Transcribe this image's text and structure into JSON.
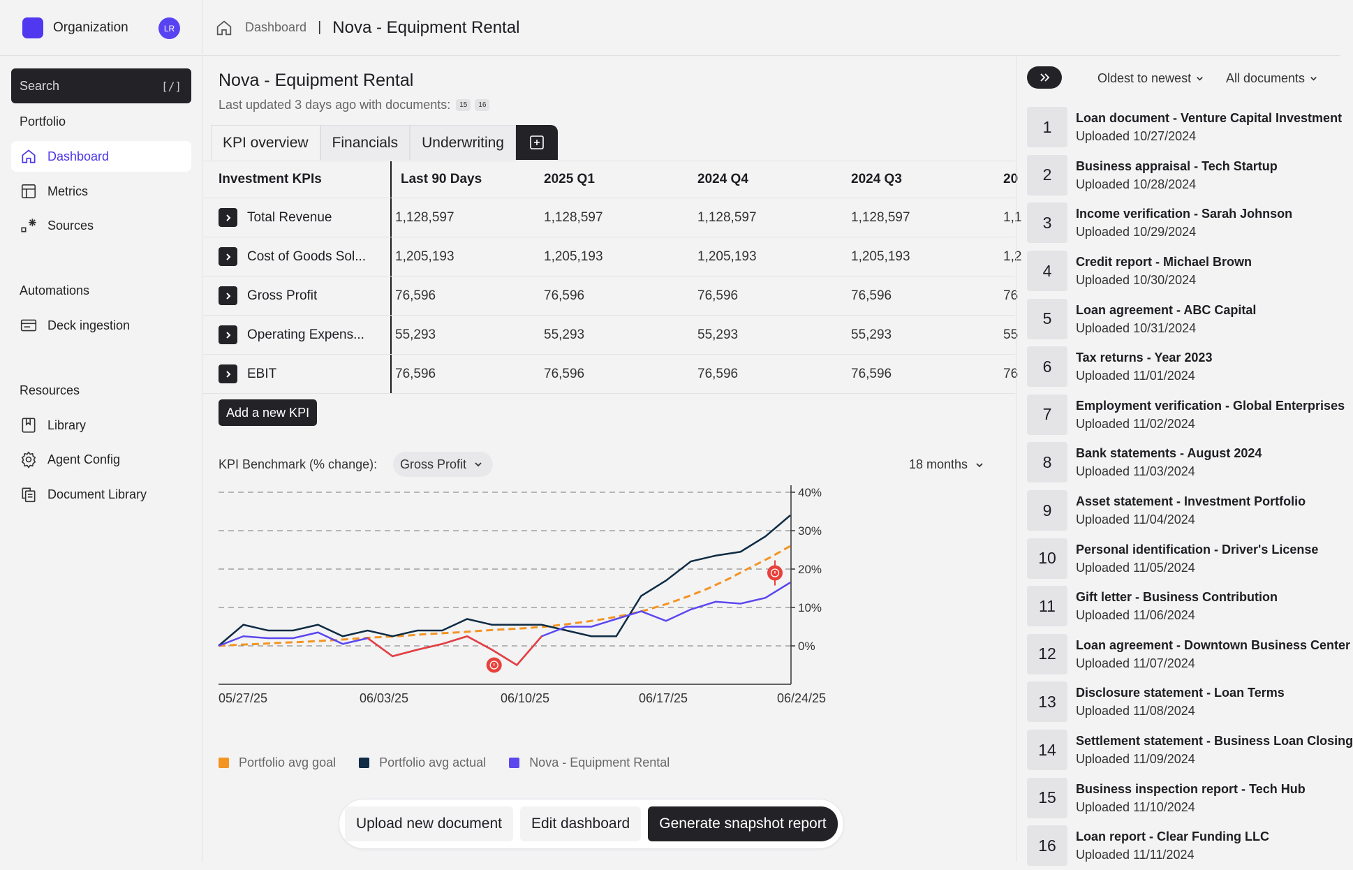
{
  "org": {
    "name": "Organization",
    "avatar": "LR"
  },
  "search": {
    "placeholder": "Search",
    "shortcut": "[/]"
  },
  "sidebar": {
    "portfolio_label": "Portfolio",
    "portfolio_items": [
      {
        "label": "Dashboard",
        "icon": "home-icon",
        "active": true
      },
      {
        "label": "Metrics",
        "icon": "table-icon"
      },
      {
        "label": "Sources",
        "icon": "sources-icon"
      }
    ],
    "automations_label": "Automations",
    "automations_items": [
      {
        "label": "Deck ingestion",
        "icon": "deck-icon"
      }
    ],
    "resources_label": "Resources",
    "resources_items": [
      {
        "label": "Library",
        "icon": "bookmark-icon"
      },
      {
        "label": "Agent Config",
        "icon": "gear-icon"
      },
      {
        "label": "Document Library",
        "icon": "documents-icon"
      }
    ]
  },
  "breadcrumb": {
    "parent": "Dashboard",
    "separator": "|",
    "current": "Nova - Equipment Rental"
  },
  "main": {
    "title": "Nova - Equipment Rental",
    "updated": "Last updated 3 days ago with documents:",
    "doc_chips": [
      "15",
      "16"
    ],
    "tabs": [
      "KPI overview",
      "Financials",
      "Underwriting"
    ]
  },
  "kpi_table": {
    "header": [
      "Investment KPIs",
      "Last 90 Days",
      "2025 Q1",
      "2024 Q4",
      "2024 Q3",
      "20"
    ],
    "rows": [
      {
        "label": "Total Revenue",
        "values": [
          "1,128,597",
          "1,128,597",
          "1,128,597",
          "1,128,597",
          "1,1"
        ]
      },
      {
        "label": "Cost of Goods Sol...",
        "values": [
          "1,205,193",
          "1,205,193",
          "1,205,193",
          "1,205,193",
          "1,2"
        ]
      },
      {
        "label": "Gross Profit",
        "values": [
          "76,596",
          "76,596",
          "76,596",
          "76,596",
          "76"
        ]
      },
      {
        "label": "Operating Expens...",
        "values": [
          "55,293",
          "55,293",
          "55,293",
          "55,293",
          "55"
        ]
      },
      {
        "label": "EBIT",
        "values": [
          "76,596",
          "76,596",
          "76,596",
          "76,596",
          "76"
        ]
      }
    ],
    "add_label": "Add a new KPI"
  },
  "benchmark": {
    "label": "KPI Benchmark (% change):",
    "selected": "Gross Profit",
    "range": "18 months"
  },
  "chart_data": {
    "type": "line",
    "x_ticks": [
      "05/27/25",
      "06/03/25",
      "06/10/25",
      "06/17/25",
      "06/24/25"
    ],
    "y_ticks": [
      "40%",
      "30%",
      "20%",
      "10%",
      "0%"
    ],
    "ylim": [
      -10,
      40
    ],
    "grid": true,
    "legend_position": "bottom-left",
    "series": [
      {
        "name": "Portfolio avg goal",
        "color": "#f39423",
        "style": "dashed",
        "values": [
          0,
          0.3,
          0.5,
          0.8,
          1,
          1.3,
          1.6,
          2,
          2.3,
          2.6,
          3,
          3.3,
          3.6,
          4,
          4.3,
          4.6,
          5,
          5.6,
          6.3,
          7.1,
          8.1,
          9.4,
          11,
          12.9,
          15,
          17.5,
          20.3,
          23,
          26
        ]
      },
      {
        "name": "Portfolio avg actual",
        "color": "#0f2c44",
        "style": "solid",
        "values": [
          0,
          5.5,
          4,
          4,
          5.5,
          2.5,
          4,
          2.5,
          4,
          4,
          7,
          5.5,
          5.5,
          5.5,
          4,
          2.5,
          2.5,
          13,
          17,
          22,
          23.5,
          24.5,
          28.5,
          34
        ]
      },
      {
        "name": "Nova - Equipment Rental",
        "color": "#5b47ee",
        "style": "solid",
        "values": [
          0,
          2.5,
          2,
          2,
          3.5,
          0.5,
          2,
          -2.7,
          -1,
          0.5,
          2.5,
          -1,
          -5,
          2.5,
          5,
          5,
          7,
          9,
          6.5,
          9.5,
          11.5,
          11,
          12.5,
          16.5
        ]
      }
    ],
    "annotations": [
      {
        "label": "alert",
        "color": "#e8413c",
        "x_index": 11,
        "y": -5
      },
      {
        "label": "alert",
        "color": "#e8413c",
        "x_index": 22,
        "y": 19
      }
    ]
  },
  "actions": {
    "upload": "Upload new document",
    "edit": "Edit dashboard",
    "generate": "Generate snapshot report"
  },
  "panel": {
    "sort": "Oldest to newest",
    "filter": "All documents",
    "documents": [
      {
        "num": "1",
        "title": "Loan document - Venture Capital Investment",
        "date": "Uploaded 10/27/2024"
      },
      {
        "num": "2",
        "title": "Business appraisal - Tech Startup",
        "date": "Uploaded 10/28/2024"
      },
      {
        "num": "3",
        "title": "Income verification - Sarah Johnson",
        "date": "Uploaded 10/29/2024"
      },
      {
        "num": "4",
        "title": "Credit report - Michael Brown",
        "date": "Uploaded 10/30/2024"
      },
      {
        "num": "5",
        "title": "Loan agreement - ABC Capital",
        "date": "Uploaded 10/31/2024"
      },
      {
        "num": "6",
        "title": "Tax returns - Year 2023",
        "date": "Uploaded 11/01/2024"
      },
      {
        "num": "7",
        "title": "Employment verification - Global Enterprises",
        "date": "Uploaded 11/02/2024"
      },
      {
        "num": "8",
        "title": "Bank statements - August 2024",
        "date": "Uploaded 11/03/2024"
      },
      {
        "num": "9",
        "title": "Asset statement - Investment Portfolio",
        "date": "Uploaded 11/04/2024"
      },
      {
        "num": "10",
        "title": "Personal identification - Driver's License",
        "date": "Uploaded 11/05/2024"
      },
      {
        "num": "11",
        "title": "Gift letter - Business Contribution",
        "date": "Uploaded 11/06/2024"
      },
      {
        "num": "12",
        "title": "Loan agreement - Downtown Business Center",
        "date": "Uploaded 11/07/2024"
      },
      {
        "num": "13",
        "title": "Disclosure statement - Loan Terms",
        "date": "Uploaded 11/08/2024"
      },
      {
        "num": "14",
        "title": "Settlement statement - Business Loan Closing",
        "date": "Uploaded 11/09/2024"
      },
      {
        "num": "15",
        "title": "Business inspection report - Tech Hub",
        "date": "Uploaded 11/10/2024"
      },
      {
        "num": "16",
        "title": "Loan report - Clear Funding LLC",
        "date": "Uploaded 11/11/2024"
      }
    ]
  }
}
